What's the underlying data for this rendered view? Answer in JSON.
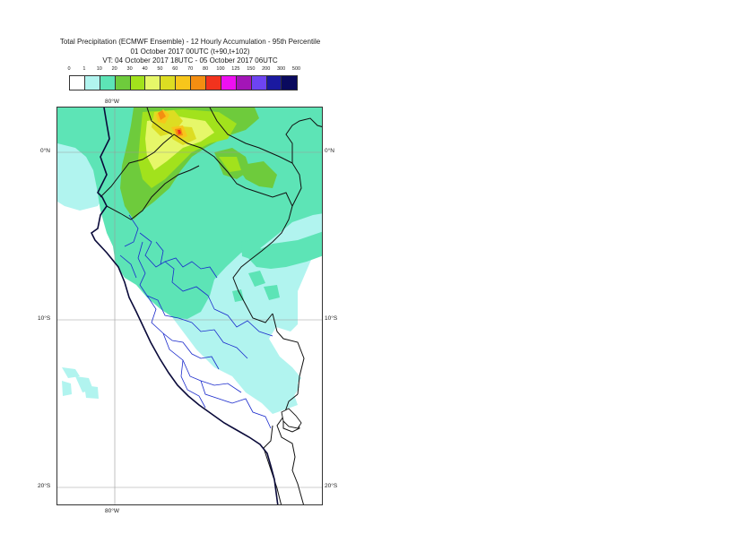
{
  "title": {
    "line1": "Total Precipitation (ECMWF Ensemble) - 12 Hourly Accumulation - 95th Percentile",
    "line2": "01 October 2017 00UTC (t+90,t+102)",
    "line3": "VT: 04 October 2017 18UTC - 05 October 2017 06UTC"
  },
  "legend": {
    "ticks": [
      "0",
      "1",
      "10",
      "20",
      "30",
      "40",
      "50",
      "60",
      "70",
      "80",
      "100",
      "125",
      "150",
      "200",
      "300",
      "500"
    ],
    "colors": [
      "#ffffff",
      "#b1f4ef",
      "#5de4b6",
      "#6ecb3c",
      "#a2e21c",
      "#e6f769",
      "#dddd22",
      "#f7c61b",
      "#f48e11",
      "#f2331d",
      "#ee10f1",
      "#a315b7",
      "#6d44f2",
      "#1a19a0",
      "#0a0a5e"
    ]
  },
  "map": {
    "lon_labels": {
      "top": "80°W",
      "bottom": "80°W"
    },
    "lat_labels": {
      "eq_left": "0°N",
      "eq_right": "0°N",
      "s10_left": "10°S",
      "s10_right": "10°S",
      "s20_left": "20°S",
      "s20_right": "20°S"
    },
    "colors": {
      "ocean": "#ffffff",
      "coastline": "#0a0a3a",
      "country_border": "#111111",
      "admin_border": "#1a2acc",
      "grid": "#999999"
    }
  }
}
